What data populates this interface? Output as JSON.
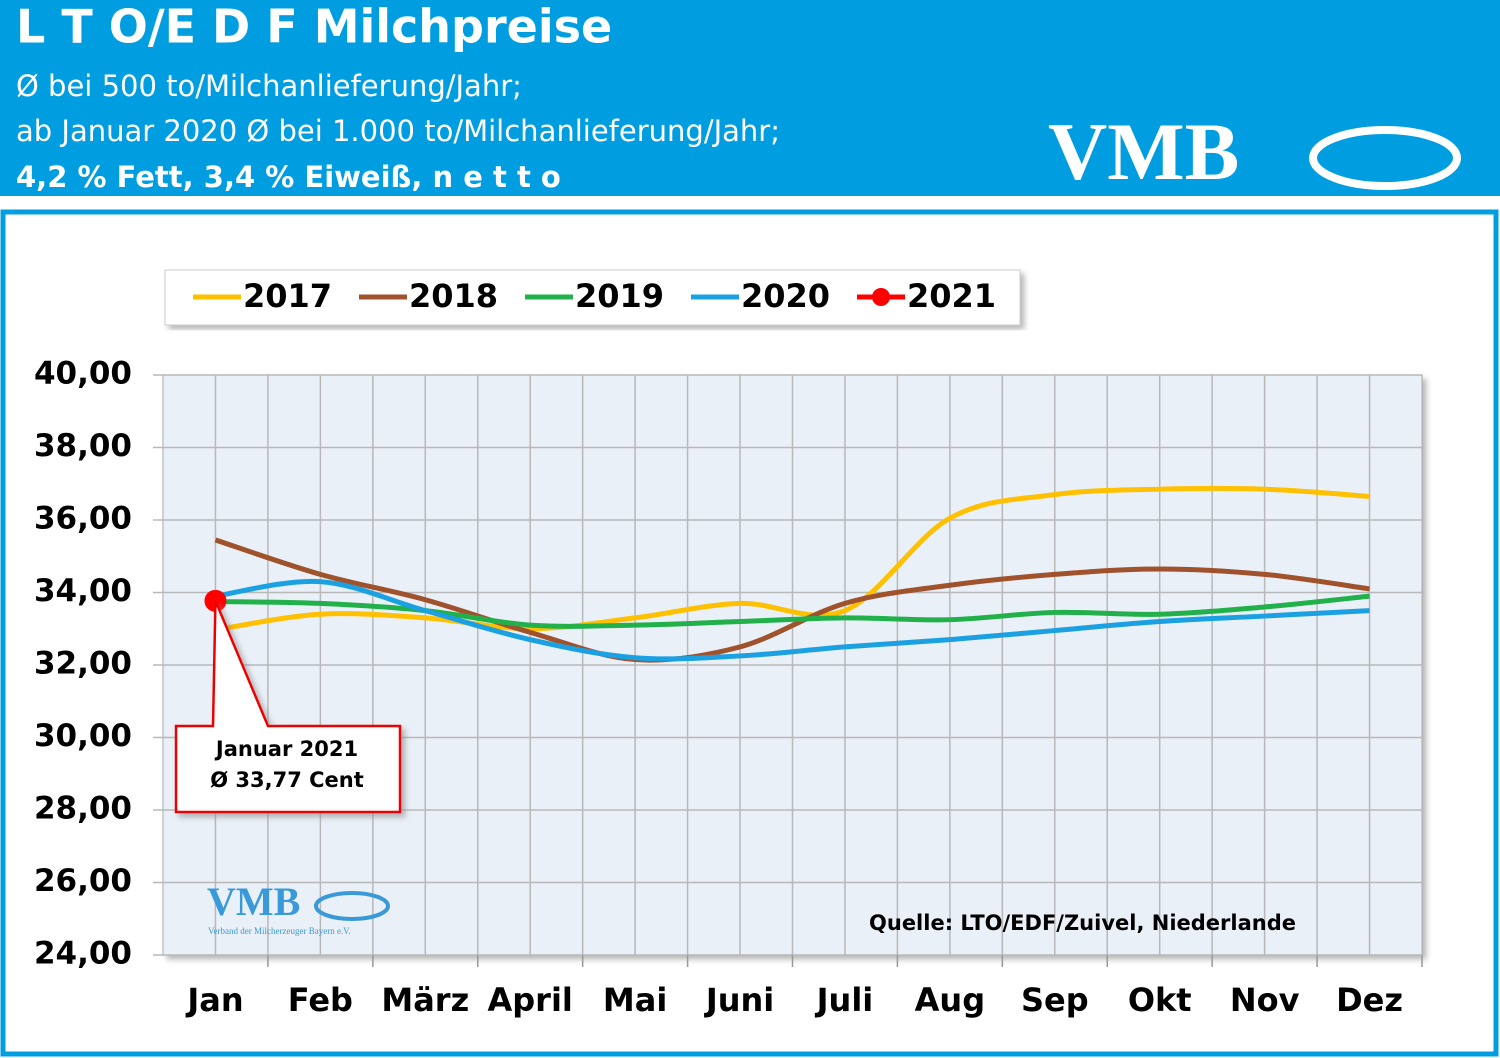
{
  "header": {
    "title": "L T O/E D F Milchpreise",
    "subtitle_lines": [
      "Ø bei 500 to/Milchanlieferung/Jahr;",
      "ab Januar 2020 Ø bei 1.000 to/Milchanlieferung/Jahr;",
      "4,2 % Fett, 3,4 % Eiweiß,  n e t t o"
    ],
    "logo": "VMB"
  },
  "chart_data": {
    "type": "line",
    "categories": [
      "Jan",
      "Feb",
      "März",
      "April",
      "Mai",
      "Juni",
      "Juli",
      "Aug",
      "Sep",
      "Okt",
      "Nov",
      "Dez"
    ],
    "series": [
      {
        "name": "2017",
        "color": "#ffc000",
        "values": [
          32.97,
          33.4,
          33.3,
          33.0,
          33.3,
          33.7,
          33.5,
          36.05,
          36.7,
          36.85,
          36.85,
          36.65
        ]
      },
      {
        "name": "2018",
        "color": "#a0522d",
        "values": [
          35.45,
          34.5,
          33.8,
          32.9,
          32.15,
          32.5,
          33.7,
          34.2,
          34.5,
          34.65,
          34.5,
          34.1
        ]
      },
      {
        "name": "2019",
        "color": "#22b04b",
        "values": [
          33.75,
          33.7,
          33.5,
          33.1,
          33.1,
          33.2,
          33.3,
          33.25,
          33.45,
          33.4,
          33.6,
          33.9
        ]
      },
      {
        "name": "2020",
        "color": "#1ba1e2",
        "values": [
          33.9,
          34.3,
          33.5,
          32.7,
          32.2,
          32.25,
          32.5,
          32.7,
          32.95,
          33.2,
          33.35,
          33.5
        ]
      },
      {
        "name": "2021",
        "color": "#ff0000",
        "values": [
          33.77,
          null,
          null,
          null,
          null,
          null,
          null,
          null,
          null,
          null,
          null,
          null
        ]
      }
    ],
    "ylim": [
      24,
      40
    ],
    "yticks": [
      {
        "value": 24,
        "label": "24,00"
      },
      {
        "value": 26,
        "label": "26,00"
      },
      {
        "value": 28,
        "label": "28,00"
      },
      {
        "value": 30,
        "label": "30,00"
      },
      {
        "value": 32,
        "label": "32,00"
      },
      {
        "value": 34,
        "label": "34,00"
      },
      {
        "value": 36,
        "label": "36,00"
      },
      {
        "value": 38,
        "label": "38,00"
      },
      {
        "value": 40,
        "label": "40,00"
      }
    ],
    "grid": true,
    "legend": "top",
    "annotation": [
      "Januar 2021",
      "Ø 33,77 Cent"
    ],
    "source": "Quelle: LTO/EDF/Zuivel, Niederlande",
    "watermark": {
      "logo": "VMB",
      "tagline": "Verband der Milcherzeuger Bayern e.V."
    }
  }
}
